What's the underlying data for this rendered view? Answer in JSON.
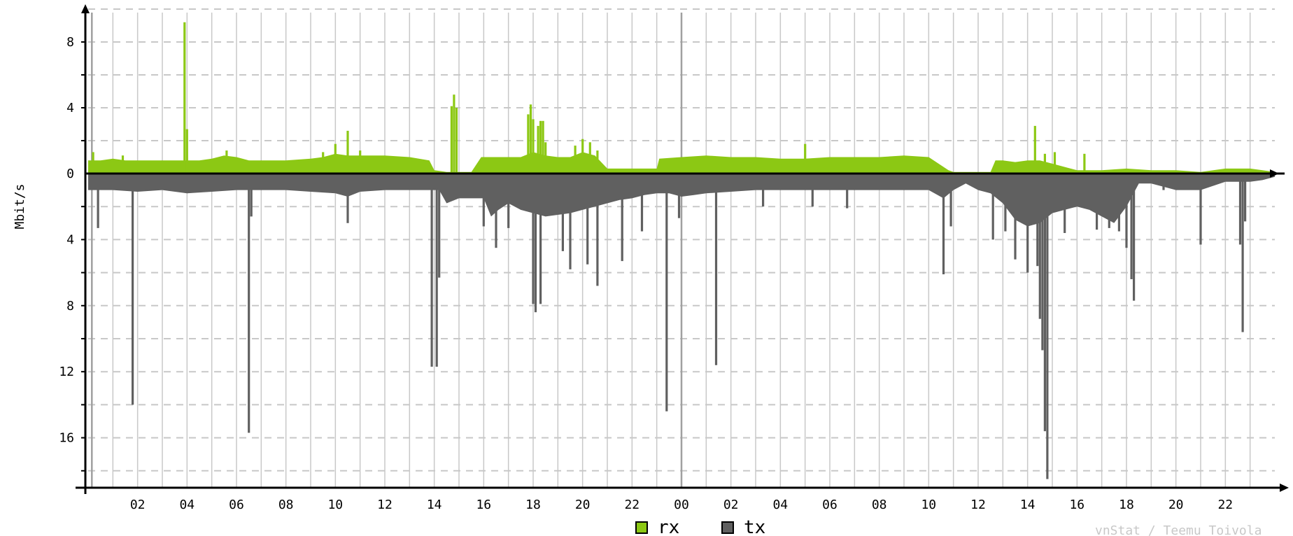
{
  "chart_data": {
    "type": "area",
    "ylabel": "Mbit/s",
    "credit": "vnStat / Teemu Toivola",
    "x_ticks": [
      "02",
      "04",
      "06",
      "08",
      "10",
      "12",
      "14",
      "16",
      "18",
      "20",
      "22",
      "00",
      "02",
      "04",
      "06",
      "08",
      "10",
      "12",
      "14",
      "16",
      "18",
      "20",
      "22"
    ],
    "y_ticks_up": [
      0,
      4,
      8
    ],
    "y_ticks_down": [
      4,
      8,
      12,
      16
    ],
    "ylim": [
      -18.5,
      9.5
    ],
    "x_range_hours": [
      0,
      48
    ],
    "grid": true,
    "legend_placement": "bottom-center",
    "colors": {
      "rx": "#8cc814",
      "tx": "#606060",
      "axis": "#000000",
      "grid": "#c8c8c8",
      "day_divider": "#a0a0a0"
    },
    "series": [
      {
        "name": "rx",
        "baseline": [
          [
            0,
            0.8
          ],
          [
            0.5,
            0.8
          ],
          [
            1,
            0.9
          ],
          [
            1.5,
            0.8
          ],
          [
            2,
            0.8
          ],
          [
            3,
            0.8
          ],
          [
            3.9,
            0.8
          ],
          [
            4.5,
            0.8
          ],
          [
            5,
            0.9
          ],
          [
            5.5,
            1.1
          ],
          [
            6,
            1.0
          ],
          [
            6.5,
            0.8
          ],
          [
            7,
            0.8
          ],
          [
            8,
            0.8
          ],
          [
            9,
            0.9
          ],
          [
            9.5,
            1.0
          ],
          [
            10,
            1.2
          ],
          [
            10.5,
            1.1
          ],
          [
            11,
            1.1
          ],
          [
            12,
            1.1
          ],
          [
            13,
            1.0
          ],
          [
            13.8,
            0.8
          ],
          [
            14,
            0.2
          ],
          [
            14.5,
            0.1
          ],
          [
            15,
            0.1
          ],
          [
            15.5,
            0.1
          ],
          [
            15.9,
            1.0
          ],
          [
            16.5,
            1.0
          ],
          [
            17,
            1.0
          ],
          [
            17.5,
            1.0
          ],
          [
            18,
            1.3
          ],
          [
            18.5,
            1.1
          ],
          [
            19,
            1.0
          ],
          [
            19.5,
            1.0
          ],
          [
            20,
            1.3
          ],
          [
            20.5,
            1.1
          ],
          [
            21,
            0.3
          ],
          [
            21.5,
            0.3
          ],
          [
            22,
            0.3
          ],
          [
            22.5,
            0.3
          ],
          [
            23,
            0.3
          ],
          [
            23.1,
            0.9
          ],
          [
            24,
            1.0
          ],
          [
            25,
            1.1
          ],
          [
            26,
            1.0
          ],
          [
            27,
            1.0
          ],
          [
            28,
            0.9
          ],
          [
            29,
            0.9
          ],
          [
            30,
            1.0
          ],
          [
            31,
            1.0
          ],
          [
            32,
            1.0
          ],
          [
            33,
            1.1
          ],
          [
            34,
            1.0
          ],
          [
            34.8,
            0.2
          ],
          [
            35,
            0.1
          ],
          [
            35.5,
            0.1
          ],
          [
            36,
            0.1
          ],
          [
            36.5,
            0.1
          ],
          [
            36.7,
            0.8
          ],
          [
            37,
            0.8
          ],
          [
            37.5,
            0.7
          ],
          [
            38,
            0.8
          ],
          [
            38.5,
            0.8
          ],
          [
            39,
            0.6
          ],
          [
            40,
            0.2
          ],
          [
            41,
            0.2
          ],
          [
            42,
            0.3
          ],
          [
            43,
            0.2
          ],
          [
            44,
            0.2
          ],
          [
            45,
            0.1
          ],
          [
            46,
            0.3
          ],
          [
            47,
            0.3
          ],
          [
            47.5,
            0.2
          ],
          [
            48,
            0.1
          ]
        ],
        "spikes": [
          [
            0.2,
            1.3
          ],
          [
            1.4,
            1.1
          ],
          [
            3.9,
            9.2
          ],
          [
            4.0,
            2.7
          ],
          [
            5.6,
            1.4
          ],
          [
            9.5,
            1.3
          ],
          [
            10.0,
            1.8
          ],
          [
            10.5,
            2.6
          ],
          [
            11.0,
            1.4
          ],
          [
            14.7,
            4.1
          ],
          [
            14.8,
            4.8
          ],
          [
            14.9,
            4.0
          ],
          [
            17.8,
            3.6
          ],
          [
            17.9,
            4.2
          ],
          [
            18.0,
            3.3
          ],
          [
            18.2,
            2.9
          ],
          [
            18.3,
            3.2
          ],
          [
            18.4,
            3.2
          ],
          [
            18.5,
            1.9
          ],
          [
            19.7,
            1.7
          ],
          [
            20.0,
            2.1
          ],
          [
            20.3,
            1.9
          ],
          [
            20.6,
            1.4
          ],
          [
            29.0,
            1.8
          ],
          [
            38.3,
            2.9
          ],
          [
            38.7,
            1.2
          ],
          [
            39.1,
            1.3
          ],
          [
            40.3,
            1.2
          ]
        ]
      },
      {
        "name": "tx",
        "baseline": [
          [
            0,
            -1.0
          ],
          [
            0.5,
            -1.0
          ],
          [
            1,
            -1.0
          ],
          [
            2,
            -1.1
          ],
          [
            3,
            -1.0
          ],
          [
            4,
            -1.2
          ],
          [
            5,
            -1.1
          ],
          [
            6,
            -1.0
          ],
          [
            7,
            -1.0
          ],
          [
            8,
            -1.0
          ],
          [
            9,
            -1.1
          ],
          [
            10,
            -1.2
          ],
          [
            10.5,
            -1.4
          ],
          [
            11,
            -1.1
          ],
          [
            12,
            -1.0
          ],
          [
            13,
            -1.0
          ],
          [
            13.8,
            -1.0
          ],
          [
            14.2,
            -1.0
          ],
          [
            14.5,
            -1.8
          ],
          [
            15,
            -1.5
          ],
          [
            15.5,
            -1.5
          ],
          [
            16,
            -1.5
          ],
          [
            16.3,
            -2.6
          ],
          [
            16.6,
            -2.2
          ],
          [
            17,
            -1.8
          ],
          [
            17.5,
            -2.2
          ],
          [
            18,
            -2.4
          ],
          [
            18.5,
            -2.6
          ],
          [
            19,
            -2.5
          ],
          [
            19.5,
            -2.4
          ],
          [
            20,
            -2.2
          ],
          [
            20.5,
            -2.0
          ],
          [
            21,
            -1.8
          ],
          [
            21.5,
            -1.6
          ],
          [
            22,
            -1.5
          ],
          [
            22.5,
            -1.3
          ],
          [
            23,
            -1.2
          ],
          [
            23.5,
            -1.2
          ],
          [
            24,
            -1.4
          ],
          [
            24.5,
            -1.3
          ],
          [
            25,
            -1.2
          ],
          [
            26,
            -1.1
          ],
          [
            27,
            -1.0
          ],
          [
            28,
            -1.0
          ],
          [
            29,
            -1.0
          ],
          [
            30,
            -1.0
          ],
          [
            31,
            -1.0
          ],
          [
            32,
            -1.0
          ],
          [
            33,
            -1.0
          ],
          [
            34,
            -1.0
          ],
          [
            34.6,
            -1.5
          ],
          [
            35,
            -1.0
          ],
          [
            35.5,
            -0.6
          ],
          [
            36,
            -1.0
          ],
          [
            36.5,
            -1.2
          ],
          [
            37,
            -1.8
          ],
          [
            37.5,
            -2.8
          ],
          [
            38,
            -3.2
          ],
          [
            38.5,
            -3.0
          ],
          [
            39,
            -2.4
          ],
          [
            39.5,
            -2.2
          ],
          [
            40,
            -2.0
          ],
          [
            40.5,
            -2.2
          ],
          [
            41,
            -2.6
          ],
          [
            41.5,
            -3.0
          ],
          [
            42,
            -2.0
          ],
          [
            42.5,
            -0.6
          ],
          [
            43,
            -0.6
          ],
          [
            43.5,
            -0.8
          ],
          [
            44,
            -1.0
          ],
          [
            45,
            -1.0
          ],
          [
            46,
            -0.5
          ],
          [
            47,
            -0.5
          ],
          [
            47.5,
            -0.4
          ],
          [
            48,
            -0.2
          ]
        ],
        "spikes": [
          [
            0.4,
            -3.3
          ],
          [
            1.8,
            -14.0
          ],
          [
            6.5,
            -15.7
          ],
          [
            6.6,
            -2.6
          ],
          [
            10.5,
            -3.0
          ],
          [
            13.9,
            -11.7
          ],
          [
            14.1,
            -11.7
          ],
          [
            14.2,
            -6.3
          ],
          [
            16.0,
            -3.2
          ],
          [
            16.5,
            -4.5
          ],
          [
            17.0,
            -3.3
          ],
          [
            18.0,
            -7.9
          ],
          [
            18.1,
            -8.4
          ],
          [
            18.3,
            -7.9
          ],
          [
            19.2,
            -4.7
          ],
          [
            19.5,
            -5.8
          ],
          [
            20.2,
            -5.5
          ],
          [
            20.6,
            -6.8
          ],
          [
            21.6,
            -5.3
          ],
          [
            22.4,
            -3.5
          ],
          [
            23.4,
            -14.4
          ],
          [
            23.9,
            -2.7
          ],
          [
            25.4,
            -11.6
          ],
          [
            27.3,
            -2.0
          ],
          [
            29.3,
            -2.0
          ],
          [
            30.7,
            -2.1
          ],
          [
            34.6,
            -6.1
          ],
          [
            34.9,
            -3.2
          ],
          [
            36.6,
            -4.0
          ],
          [
            37.1,
            -3.5
          ],
          [
            37.5,
            -5.2
          ],
          [
            38.0,
            -6.0
          ],
          [
            38.4,
            -5.6
          ],
          [
            38.5,
            -8.8
          ],
          [
            38.6,
            -10.7
          ],
          [
            38.7,
            -15.6
          ],
          [
            38.8,
            -18.5
          ],
          [
            39.5,
            -3.6
          ],
          [
            40.8,
            -3.4
          ],
          [
            41.3,
            -3.3
          ],
          [
            41.7,
            -3.5
          ],
          [
            42.0,
            -4.5
          ],
          [
            42.2,
            -6.4
          ],
          [
            42.3,
            -7.7
          ],
          [
            43.5,
            -1.0
          ],
          [
            44.0,
            -0.8
          ],
          [
            45.0,
            -4.3
          ],
          [
            46.6,
            -4.3
          ],
          [
            46.7,
            -9.6
          ],
          [
            46.8,
            -2.9
          ]
        ]
      }
    ]
  }
}
